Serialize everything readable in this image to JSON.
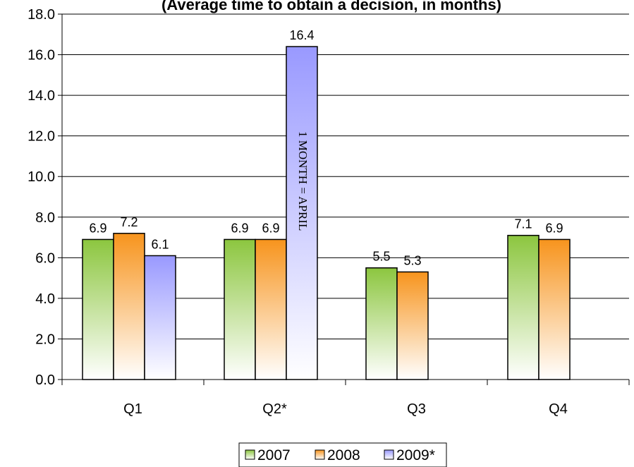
{
  "chart_data": {
    "type": "bar",
    "title": "(Average time to obtain a decision, in months)",
    "title_partial": true,
    "categories": [
      "Q1",
      "Q2*",
      "Q3",
      "Q4"
    ],
    "series": [
      {
        "name": "2007",
        "values": [
          6.9,
          6.9,
          5.5,
          7.1
        ],
        "color": "#8cc63f"
      },
      {
        "name": "2008",
        "values": [
          7.2,
          6.9,
          5.3,
          6.9
        ],
        "color": "#f7941d"
      },
      {
        "name": "2009*",
        "values": [
          6.1,
          16.4,
          null,
          null
        ],
        "color": "#9999ff"
      }
    ],
    "data_labels": [
      [
        "6.9",
        "6.9",
        "5.5",
        "7.1"
      ],
      [
        "7.2",
        "6.9",
        "5.3",
        "6.9"
      ],
      [
        "6.1",
        "16.4",
        "",
        ""
      ]
    ],
    "ylim": [
      0,
      18
    ],
    "y_ticks": [
      "0.0",
      "2.0",
      "4.0",
      "6.0",
      "8.0",
      "10.0",
      "12.0",
      "14.0",
      "16.0",
      "18.0"
    ],
    "grid": true,
    "legend_position": "bottom",
    "annotation": "1 MONTH = APRIL",
    "xlabel": "",
    "ylabel": ""
  }
}
